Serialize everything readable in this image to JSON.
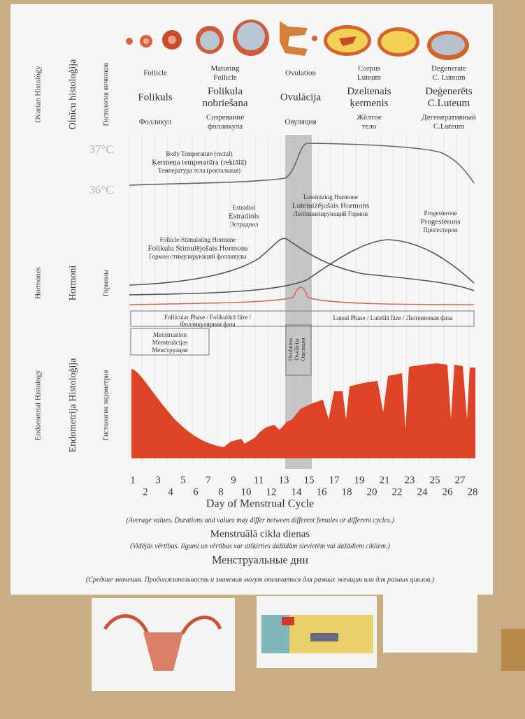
{
  "poster": {
    "side_labels": {
      "ovarian": [
        "Ovarian Histology",
        "Olnīcu histoloģija",
        "Гистология яичников"
      ],
      "hormones": [
        "Hormones",
        "Hormoni",
        "Гормоны"
      ],
      "endometrial": [
        "Endometrial Histology",
        "Endometrija Histoloģija",
        "Гистология эндометрия"
      ]
    },
    "stages": [
      {
        "en": [
          "Follicle"
        ],
        "lv": [
          "Folikuls"
        ],
        "ru": [
          "Фолликул"
        ]
      },
      {
        "en": [
          "Maturing",
          "Follicle"
        ],
        "lv": [
          "Folikula",
          "nobriešana"
        ],
        "ru": [
          "Созревание",
          "фолликула"
        ]
      },
      {
        "en": [
          "Ovulation"
        ],
        "lv": [
          "Ovulācija"
        ],
        "ru": [
          "Овуляция"
        ]
      },
      {
        "en": [
          "Corpus",
          "Luteum"
        ],
        "lv": [
          "Dzeltenais",
          "ķermenis"
        ],
        "ru": [
          "Жёлтое",
          "тело"
        ]
      },
      {
        "en": [
          "Degenerate",
          "C. Luteum"
        ],
        "lv": [
          "Deģenerēts",
          "C.Luteum"
        ],
        "ru": [
          "Дегенеративный",
          "C.Luteum"
        ]
      }
    ],
    "temperature": {
      "high": "37°C",
      "low": "36°C",
      "label": [
        "Body Temperature (rectal)",
        "Ķermeņa temperatūra (rektālā)",
        "Температура тела (ректальная)"
      ]
    },
    "hormones": {
      "estradiol": [
        "Estradiol",
        "Estradiols",
        "Эстрадиол"
      ],
      "lh": [
        "Luteinizing Hormone",
        "Luteinizējošais Hormons",
        "Лютеинизирующий Гормон"
      ],
      "fsh": [
        "Follicle-Stimulating Hormone",
        "Folikulu Stimulējošais Hormons",
        "Гормон стимулирующий фолликулы"
      ],
      "progesterone": [
        "Progesterone",
        "Progesterons",
        "Прогестерон"
      ]
    },
    "phases": {
      "follicular": [
        "Follicular Phase / Folikulārā fāze /",
        "Фолликулярная фаза"
      ],
      "luteal": "Luteal Phase / Luteālā fāze / Лютеиновая фаза",
      "menstruation": [
        "Menstruation",
        "Menstruācijas",
        "Менструация"
      ],
      "ovulation": [
        "Ovulation",
        "Ovulācija",
        "Овуляция"
      ]
    },
    "days": [
      1,
      2,
      3,
      4,
      5,
      6,
      7,
      8,
      9,
      10,
      11,
      12,
      13,
      14,
      15,
      16,
      17,
      18,
      19,
      20,
      21,
      22,
      23,
      24,
      25,
      26,
      27,
      28
    ],
    "footer": [
      "Day of Menstrual Cycle",
      "(Average values. Durations and values may differ between different females or different cycles.)",
      "Menstruālā cikla dienas",
      "(Vidējās vērtības. Ilgumi un vērtības var atšķirties dažādām sievietēm vai dažādiem cikliem.)",
      "Менструальные дни",
      "(Средние значения. Продолжительность и значения могут отличаться для разных женщин или для разных циклов.)"
    ]
  }
}
